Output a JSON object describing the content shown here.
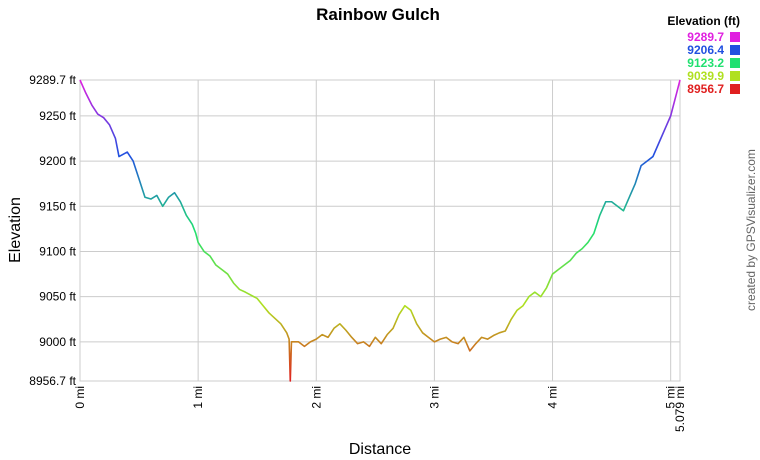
{
  "chart_data": {
    "type": "line",
    "title": "Rainbow Gulch",
    "x_label": "Distance",
    "y_label": "Elevation",
    "credit": "created by GPSVisualizer.com",
    "legend_title": "Elevation (ft)",
    "color_scale": [
      {
        "value": 9289.7,
        "color": "#e020e0"
      },
      {
        "value": 9206.4,
        "color": "#2050e0"
      },
      {
        "value": 9123.2,
        "color": "#20e070"
      },
      {
        "value": 9039.9,
        "color": "#b0e020"
      },
      {
        "value": 8956.7,
        "color": "#e02020"
      }
    ],
    "xlim": [
      0,
      5.079
    ],
    "ylim": [
      8956.7,
      9289.7
    ],
    "grid": true,
    "xticks": [
      {
        "value": 0,
        "label": "0 mi"
      },
      {
        "value": 1,
        "label": "1 mi"
      },
      {
        "value": 2,
        "label": "2 mi"
      },
      {
        "value": 3,
        "label": "3 mi"
      },
      {
        "value": 4,
        "label": "4 mi"
      },
      {
        "value": 5,
        "label": "5 mi"
      },
      {
        "value": 5.079,
        "label": "5.079 mi"
      }
    ],
    "yticks": [
      {
        "value": 8956.7,
        "label": "8956.7 ft"
      },
      {
        "value": 9000,
        "label": "9000 ft"
      },
      {
        "value": 9050,
        "label": "9050 ft"
      },
      {
        "value": 9100,
        "label": "9100 ft"
      },
      {
        "value": 9150,
        "label": "9150 ft"
      },
      {
        "value": 9200,
        "label": "9200 ft"
      },
      {
        "value": 9250,
        "label": "9250 ft"
      },
      {
        "value": 9289.7,
        "label": "9289.7 ft"
      }
    ],
    "x": [
      0,
      0.05,
      0.1,
      0.15,
      0.2,
      0.25,
      0.3,
      0.33,
      0.4,
      0.45,
      0.5,
      0.55,
      0.6,
      0.65,
      0.7,
      0.75,
      0.8,
      0.85,
      0.9,
      0.95,
      0.98,
      1.0,
      1.05,
      1.1,
      1.15,
      1.2,
      1.25,
      1.3,
      1.35,
      1.4,
      1.5,
      1.55,
      1.6,
      1.7,
      1.75,
      1.77,
      1.78,
      1.79,
      1.85,
      1.9,
      1.95,
      2.0,
      2.05,
      2.1,
      2.15,
      2.2,
      2.25,
      2.3,
      2.35,
      2.4,
      2.45,
      2.5,
      2.55,
      2.6,
      2.65,
      2.7,
      2.75,
      2.8,
      2.85,
      2.9,
      2.95,
      3.0,
      3.05,
      3.1,
      3.15,
      3.2,
      3.25,
      3.3,
      3.35,
      3.4,
      3.45,
      3.5,
      3.55,
      3.6,
      3.65,
      3.7,
      3.75,
      3.8,
      3.85,
      3.9,
      3.95,
      4.0,
      4.05,
      4.1,
      4.15,
      4.2,
      4.25,
      4.3,
      4.35,
      4.4,
      4.45,
      4.5,
      4.55,
      4.6,
      4.65,
      4.7,
      4.75,
      4.8,
      4.85,
      4.9,
      4.95,
      5.0,
      5.05,
      5.079
    ],
    "values": [
      9289.7,
      9275,
      9262,
      9252,
      9248,
      9240,
      9225,
      9205,
      9210,
      9200,
      9180,
      9160,
      9158,
      9162,
      9150,
      9160,
      9165,
      9155,
      9140,
      9130,
      9120,
      9110,
      9100,
      9095,
      9085,
      9080,
      9075,
      9065,
      9058,
      9055,
      9048,
      9040,
      9032,
      9020,
      9010,
      9003,
      8956.7,
      9000,
      9000,
      8995,
      9000,
      9003,
      9008,
      9005,
      9015,
      9020,
      9013,
      9005,
      8998,
      9000,
      8995,
      9005,
      8998,
      9008,
      9015,
      9030,
      9040,
      9035,
      9020,
      9010,
      9005,
      9000,
      9003,
      9005,
      9000,
      8998,
      9005,
      8990,
      8998,
      9005,
      9003,
      9007,
      9010,
      9012,
      9025,
      9035,
      9040,
      9050,
      9055,
      9050,
      9060,
      9075,
      9080,
      9085,
      9090,
      9098,
      9103,
      9110,
      9120,
      9140,
      9155,
      9155,
      9150,
      9145,
      9160,
      9175,
      9195,
      9200,
      9205,
      9220,
      9235,
      9250,
      9275,
      9289.7
    ]
  }
}
